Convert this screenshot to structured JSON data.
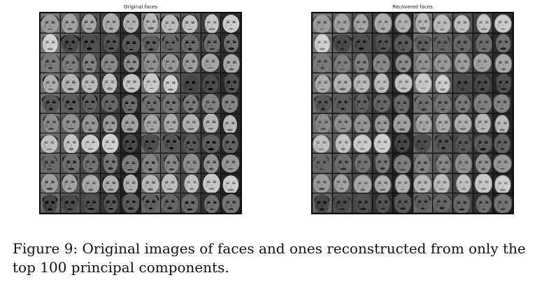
{
  "figure": {
    "left_panel": {
      "title": "Original faces"
    },
    "right_panel": {
      "title": "Recovered faces"
    },
    "caption": "Figure 9: Original images of faces and ones reconstructed from only the top 100 principal components."
  },
  "grid": {
    "rows": 10,
    "cols": 10
  }
}
